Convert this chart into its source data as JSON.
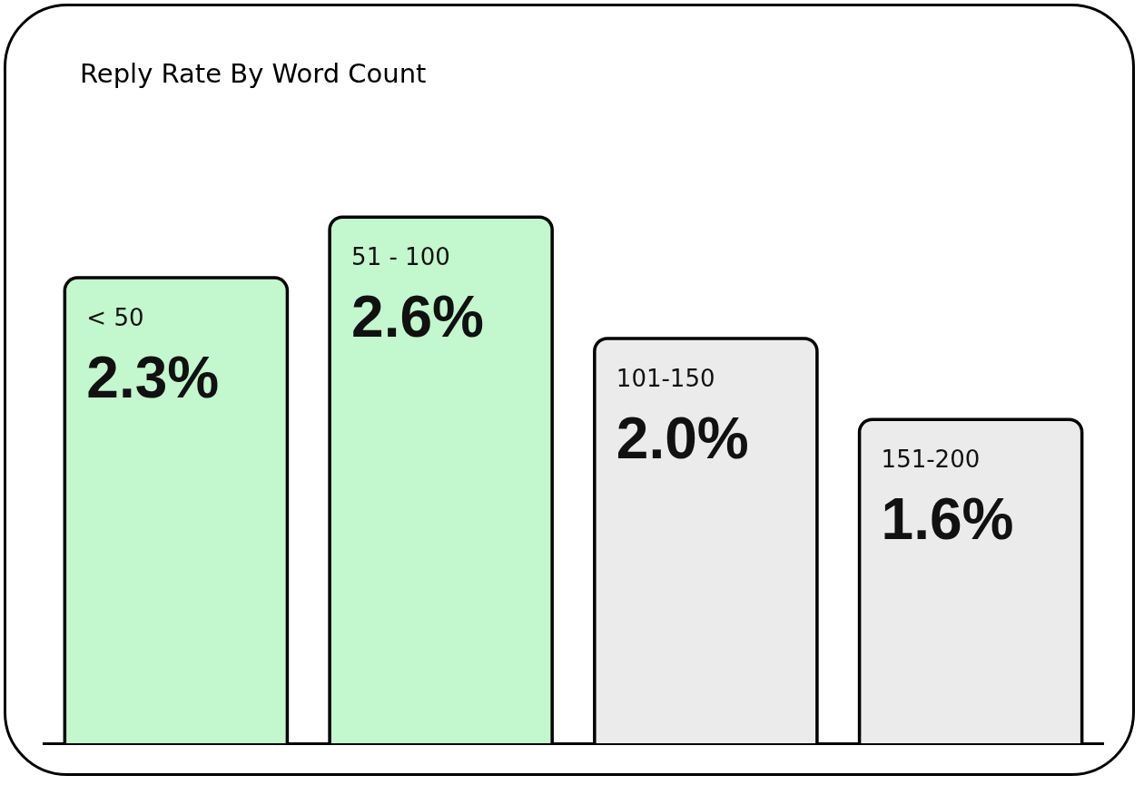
{
  "chart_data": {
    "type": "bar",
    "title": "Reply Rate By Word Count",
    "categories": [
      "< 50",
      "51 - 100",
      "101-150",
      "151-200"
    ],
    "values": [
      2.3,
      2.6,
      2.0,
      1.6
    ],
    "value_labels": [
      "2.3%",
      "2.6%",
      "2.0%",
      "1.6%"
    ],
    "colors": [
      "#c3f7cd",
      "#c3f7cd",
      "#ebebeb",
      "#ebebeb"
    ],
    "legend": false,
    "grid": false
  }
}
